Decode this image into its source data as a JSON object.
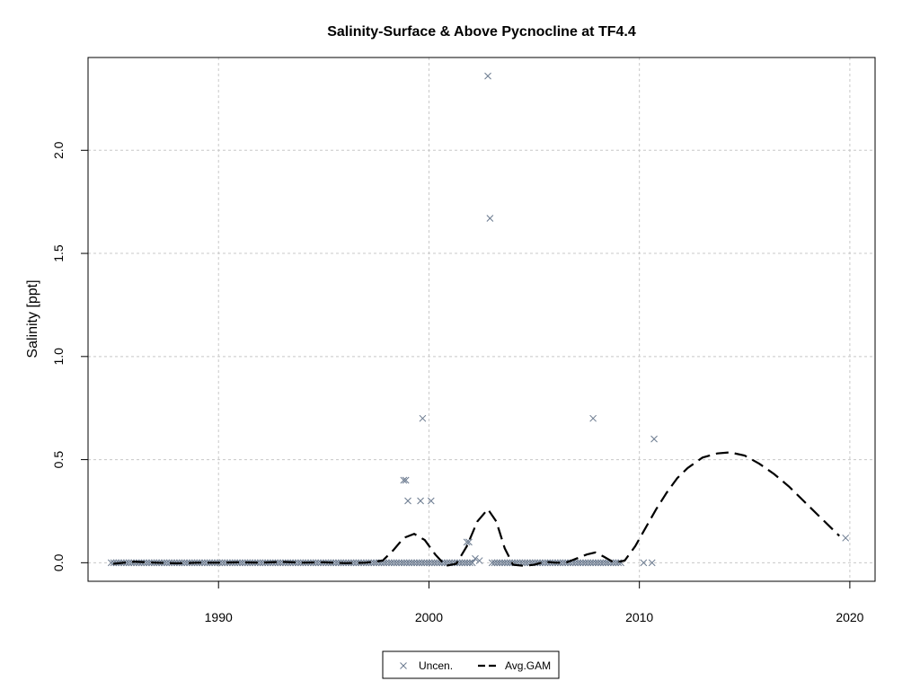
{
  "chart_data": {
    "type": "scatter",
    "title": "Salinity-Surface & Above Pycnocline at TF4.4",
    "xlabel": "",
    "ylabel": "Salinity [ppt]",
    "xlim": [
      1983.8,
      2021.2
    ],
    "ylim": [
      -0.09,
      2.45
    ],
    "x_ticks": [
      1990,
      2000,
      2010,
      2020
    ],
    "y_ticks": [
      0.0,
      0.5,
      1.0,
      1.5,
      2.0
    ],
    "x_tick_labels": [
      "1990",
      "2000",
      "2010",
      "2020"
    ],
    "y_tick_labels": [
      "0.0",
      "0.5",
      "1.0",
      "1.5",
      "2.0"
    ],
    "grid": true,
    "legend_position": "bottom-center",
    "colors": {
      "points": "#6b7a8f",
      "line": "#000000",
      "grid": "#c8c8c8"
    },
    "series": [
      {
        "name": "Uncen.",
        "kind": "points",
        "marker": "x",
        "points": [
          [
            1998.8,
            0.4
          ],
          [
            1998.9,
            0.4
          ],
          [
            1999.0,
            0.3
          ],
          [
            1999.6,
            0.3
          ],
          [
            1999.7,
            0.7
          ],
          [
            2000.1,
            0.3
          ],
          [
            2001.8,
            0.1
          ],
          [
            2001.9,
            0.1
          ],
          [
            2002.8,
            2.36
          ],
          [
            2002.9,
            1.67
          ],
          [
            2007.8,
            0.7
          ],
          [
            2010.7,
            0.6
          ],
          [
            2010.2,
            0.0
          ],
          [
            2010.6,
            0.0
          ],
          [
            2019.8,
            0.12
          ],
          [
            2002.2,
            0.02
          ],
          [
            2002.4,
            0.01
          ]
        ],
        "zero_ranges": [
          [
            1984.9,
            2002.1
          ],
          [
            2003.0,
            2009.2
          ]
        ],
        "zero_step": 0.12
      },
      {
        "name": "Avg.GAM",
        "kind": "line",
        "dash": "dashed",
        "points": [
          [
            1985.0,
            -0.005
          ],
          [
            1986.0,
            0.005
          ],
          [
            1987.0,
            0.0
          ],
          [
            1988.0,
            -0.003
          ],
          [
            1989.0,
            0.0
          ],
          [
            1990.0,
            0.0
          ],
          [
            1991.0,
            0.002
          ],
          [
            1992.0,
            0.0
          ],
          [
            1993.0,
            0.004
          ],
          [
            1994.0,
            0.0
          ],
          [
            1995.0,
            0.002
          ],
          [
            1996.0,
            -0.002
          ],
          [
            1997.0,
            0.0
          ],
          [
            1997.8,
            0.01
          ],
          [
            1998.3,
            0.06
          ],
          [
            1998.8,
            0.12
          ],
          [
            1999.3,
            0.14
          ],
          [
            1999.8,
            0.11
          ],
          [
            2000.3,
            0.04
          ],
          [
            2000.8,
            -0.015
          ],
          [
            2001.3,
            -0.005
          ],
          [
            2001.8,
            0.08
          ],
          [
            2002.3,
            0.2
          ],
          [
            2002.8,
            0.26
          ],
          [
            2003.2,
            0.2
          ],
          [
            2003.6,
            0.07
          ],
          [
            2004.0,
            -0.01
          ],
          [
            2004.5,
            -0.015
          ],
          [
            2005.0,
            -0.01
          ],
          [
            2005.5,
            0.005
          ],
          [
            2006.0,
            0.0
          ],
          [
            2006.5,
            0.0
          ],
          [
            2007.0,
            0.02
          ],
          [
            2007.5,
            0.04
          ],
          [
            2007.9,
            0.05
          ],
          [
            2008.3,
            0.03
          ],
          [
            2008.8,
            0.0
          ],
          [
            2009.3,
            0.01
          ],
          [
            2009.8,
            0.08
          ],
          [
            2010.3,
            0.17
          ],
          [
            2010.8,
            0.26
          ],
          [
            2011.3,
            0.34
          ],
          [
            2011.8,
            0.41
          ],
          [
            2012.3,
            0.46
          ],
          [
            2013.0,
            0.51
          ],
          [
            2013.7,
            0.53
          ],
          [
            2014.3,
            0.535
          ],
          [
            2015.0,
            0.52
          ],
          [
            2015.7,
            0.48
          ],
          [
            2016.4,
            0.43
          ],
          [
            2017.1,
            0.37
          ],
          [
            2017.8,
            0.3
          ],
          [
            2018.5,
            0.23
          ],
          [
            2019.2,
            0.16
          ],
          [
            2019.5,
            0.13
          ]
        ]
      }
    ]
  }
}
